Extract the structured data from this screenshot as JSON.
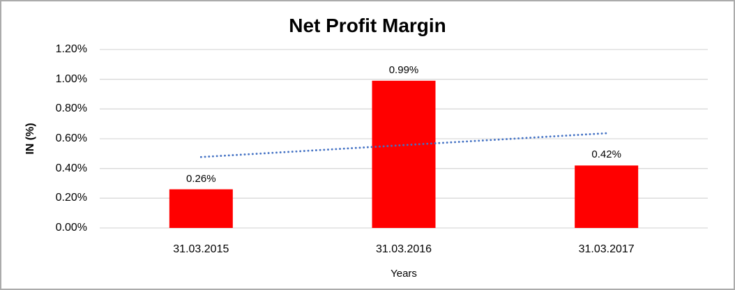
{
  "chart_data": {
    "type": "bar",
    "title": "Net Profit Margin",
    "xlabel": "Years",
    "ylabel": "IN (%)",
    "categories": [
      "31.03.2015",
      "31.03.2016",
      "31.03.2017"
    ],
    "values": [
      0.26,
      0.99,
      0.42
    ],
    "data_labels": [
      "0.26%",
      "0.99%",
      "0.42%"
    ],
    "ylim": [
      0,
      1.2
    ],
    "ytick_step": 0.2,
    "ytick_labels": [
      "0.00%",
      "0.20%",
      "0.40%",
      "0.60%",
      "0.80%",
      "1.00%",
      "1.20%"
    ],
    "grid": true,
    "legend_position": "none",
    "trendline": {
      "type": "linear",
      "style": "dotted",
      "start_value": 0.477,
      "end_value": 0.637,
      "color": "#4472C4"
    },
    "colors": {
      "bar": "#FF0000",
      "trendline": "#4472C4",
      "gridline": "#D9D9D9",
      "text": "#000000",
      "border": "#ABABAB",
      "background": "#FFFFFF"
    }
  }
}
